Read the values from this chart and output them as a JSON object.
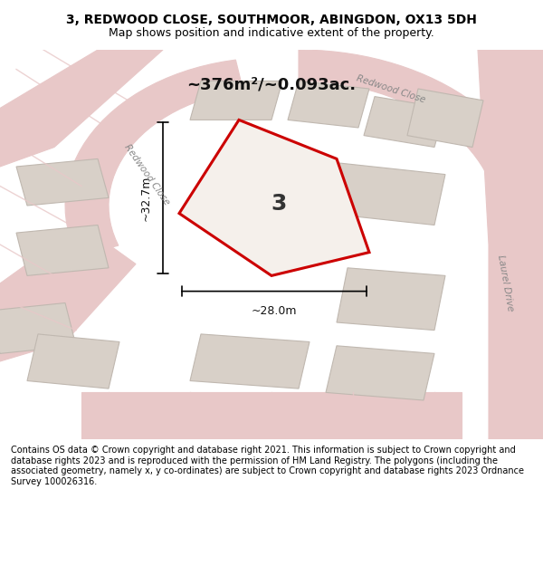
{
  "title_line1": "3, REDWOOD CLOSE, SOUTHMOOR, ABINGDON, OX13 5DH",
  "title_line2": "Map shows position and indicative extent of the property.",
  "area_text": "~376m²/~0.093ac.",
  "plot_number": "3",
  "dim_width": "~28.0m",
  "dim_height": "~32.7m",
  "footer": "Contains OS data © Crown copyright and database right 2021. This information is subject to Crown copyright and database rights 2023 and is reproduced with the permission of HM Land Registry. The polygons (including the associated geometry, namely x, y co-ordinates) are subject to Crown copyright and database rights 2023 Ordnance Survey 100026316.",
  "bg_color": "#f0ece8",
  "map_bg": "#f5f0eb",
  "road_color": "#e8c8c8",
  "building_color": "#d8d0c8",
  "building_edge": "#c0b8b0",
  "plot_color": "#f5f0eb",
  "plot_edge": "#cc0000",
  "road_label1": "Redwood Close",
  "road_label2": "Redwood Close",
  "road_label3": "Laurel Drive",
  "footer_bg": "#ffffff",
  "title_bg": "#ffffff"
}
